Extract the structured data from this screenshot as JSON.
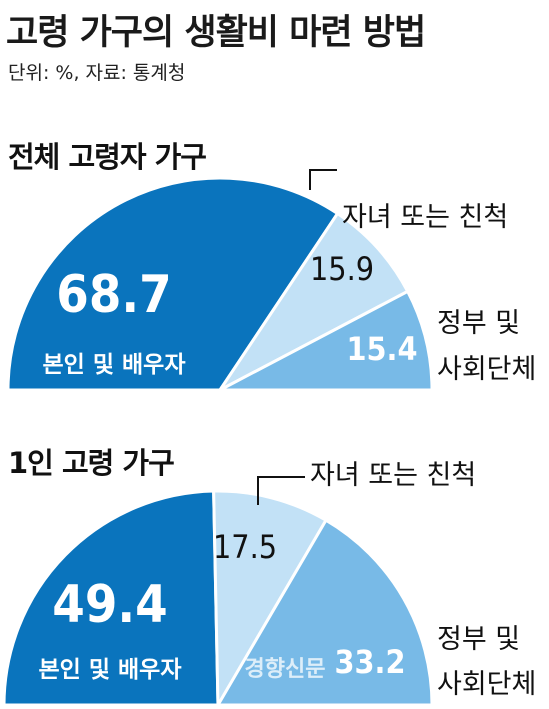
{
  "header": {
    "title": "고령 가구의 생활비 마련 방법",
    "subtitle": "단위: %, 자료: 통계청"
  },
  "colors": {
    "dark": "#0a74bd",
    "light": "#c2e1f6",
    "medium": "#78bae7",
    "text_dark": "#111111",
    "text_white": "#ffffff"
  },
  "chart_data": [
    {
      "type": "pie",
      "title": "전체 고령자 가구",
      "categories": [
        "본인 및 배우자",
        "자녀 또는 친척",
        "정부 및 사회단체"
      ],
      "values": [
        68.7,
        15.9,
        15.4
      ]
    },
    {
      "type": "pie",
      "title": "1인 고령 가구",
      "categories": [
        "본인 및 배우자",
        "자녀 또는 친척",
        "정부 및 사회단체"
      ],
      "values": [
        49.4,
        17.5,
        33.2
      ]
    }
  ],
  "labels": {
    "self_spouse": "본인 및 배우자",
    "children": "자녀 또는 친척",
    "gov_line1": "정부 및",
    "gov_line2": "사회단체"
  },
  "watermark": "경향신문"
}
